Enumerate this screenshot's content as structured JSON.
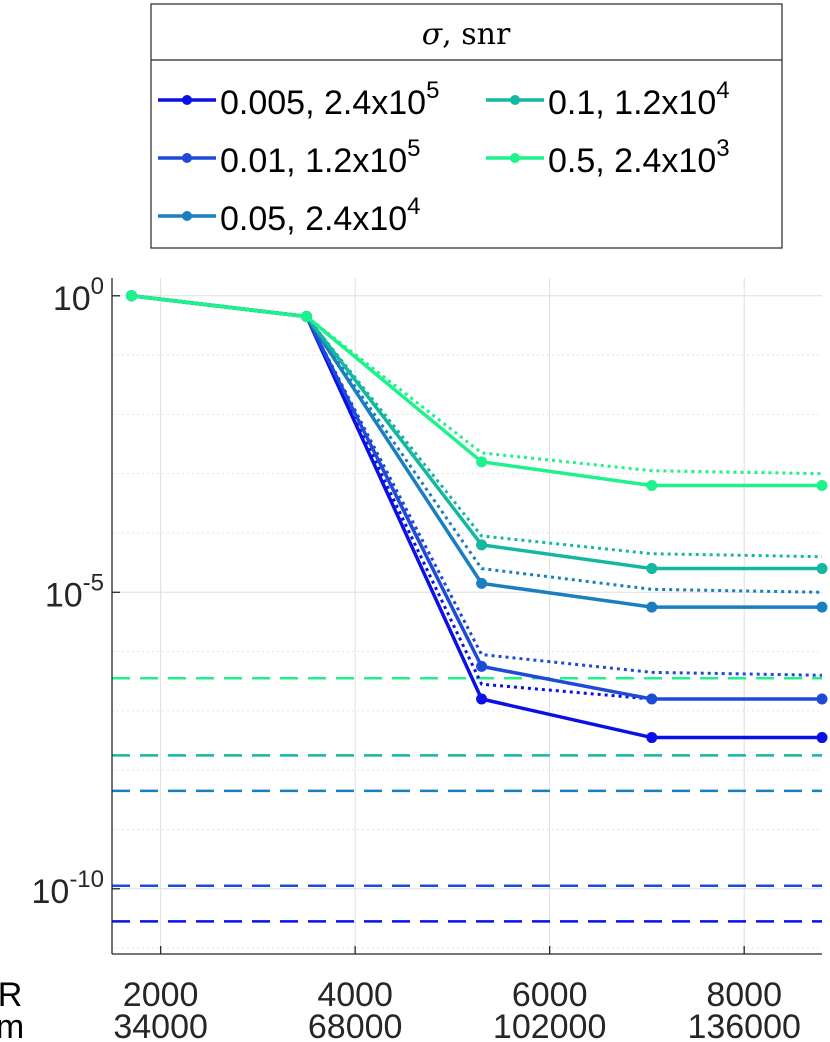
{
  "chart_data": {
    "type": "line",
    "title": "",
    "xlabel": "",
    "ylabel": "",
    "x": [
      1700,
      3500,
      5300,
      7050,
      8800
    ],
    "xlim": [
      1500,
      8800
    ],
    "ylim_log10": [
      -11.1,
      0.3
    ],
    "y_scale": "log",
    "grid": true,
    "legend": {
      "title": "σ, snr",
      "title_math": "σ",
      "title_rest": ", snr",
      "placement": "top",
      "columns": 2
    },
    "x_tick_rows": [
      {
        "label": "R",
        "ticks": [
          {
            "x": 2000,
            "label": "2000"
          },
          {
            "x": 4000,
            "label": "4000"
          },
          {
            "x": 6000,
            "label": "6000"
          },
          {
            "x": 8000,
            "label": "8000"
          }
        ]
      },
      {
        "label": "m",
        "ticks": [
          {
            "x": 2000,
            "label": "34000"
          },
          {
            "x": 4000,
            "label": "68000"
          },
          {
            "x": 6000,
            "label": "102000"
          },
          {
            "x": 8000,
            "label": "136000"
          }
        ]
      }
    ],
    "y_ticks": [
      {
        "log10": 0,
        "base": "10",
        "exp": "0"
      },
      {
        "log10": -5,
        "base": "10",
        "exp": "-5"
      },
      {
        "log10": -10,
        "base": "10",
        "exp": "-10"
      }
    ],
    "series": [
      {
        "name_main": "0.005, 2.4x10",
        "name_exp": "5",
        "color": "#0a10e6",
        "solid_log10": [
          0,
          -0.35,
          -6.8,
          -7.45,
          -7.45
        ],
        "dotted_log10": [
          0,
          -0.35,
          -6.55,
          -6.8,
          -6.8
        ],
        "floor_log10": -10.55
      },
      {
        "name_main": "0.01, 1.2x10",
        "name_exp": "5",
        "color": "#1e4ad8",
        "solid_log10": [
          0,
          -0.35,
          -6.25,
          -6.8,
          -6.8
        ],
        "dotted_log10": [
          0,
          -0.35,
          -6.05,
          -6.35,
          -6.4
        ],
        "floor_log10": -9.95
      },
      {
        "name_main": "0.05, 2.4x10",
        "name_exp": "4",
        "color": "#1a7fc0",
        "solid_log10": [
          0,
          -0.35,
          -4.85,
          -5.25,
          -5.25
        ],
        "dotted_log10": [
          0,
          -0.35,
          -4.6,
          -4.95,
          -5.0
        ],
        "floor_log10": -8.35
      },
      {
        "name_main": "0.1, 1.2x10",
        "name_exp": "4",
        "color": "#14b8a0",
        "solid_log10": [
          0,
          -0.35,
          -4.2,
          -4.6,
          -4.6
        ],
        "dotted_log10": [
          0,
          -0.35,
          -4.05,
          -4.35,
          -4.4
        ],
        "floor_log10": -7.75
      },
      {
        "name_main": "0.5, 2.4x10",
        "name_exp": "3",
        "color": "#1ef28a",
        "solid_log10": [
          0,
          -0.35,
          -2.8,
          -3.2,
          -3.2
        ],
        "dotted_log10": [
          0,
          -0.35,
          -2.65,
          -2.95,
          -3.0
        ],
        "floor_log10": -6.45
      }
    ]
  }
}
